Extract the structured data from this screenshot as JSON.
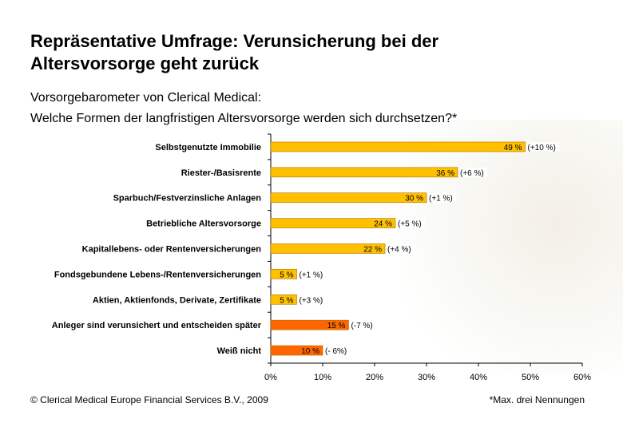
{
  "header": {
    "title_line1": "Repräsentative Umfrage: Verunsicherung bei der",
    "title_line2": "Altersvorsorge geht zurück",
    "subtitle_line1": "Vorsorgebarometer von Clerical Medical:",
    "subtitle_line2": "Welche Formen der langfristigen Altersvorsorge werden sich durchsetzen?*"
  },
  "footer": {
    "copyright": "© Clerical Medical Europe Financial Services B.V., 2009",
    "note": "*Max. drei Nennungen"
  },
  "chart_data": {
    "type": "bar",
    "orientation": "horizontal",
    "title": "",
    "xlabel": "",
    "ylabel": "",
    "xlim": [
      0,
      60
    ],
    "ticks": [
      "0%",
      "10%",
      "20%",
      "30%",
      "40%",
      "50%",
      "60%"
    ],
    "grid": false,
    "categories": [
      "Selbstgenutzte Immobilie",
      "Riester-/Basisrente",
      "Sparbuch/Festverzinsliche Anlagen",
      "Betriebliche Altersvorsorge",
      "Kapitallebens- oder Rentenversicherungen",
      "Fondsgebundene Lebens-/Rentenversicherungen",
      "Aktien, Aktienfonds, Derivate, Zertifikate",
      "Anleger sind verunsichert und entscheiden später",
      "Weiß nicht"
    ],
    "values": [
      49,
      36,
      30,
      24,
      22,
      5,
      5,
      15,
      10
    ],
    "value_labels": [
      "49 %",
      "36 %",
      "30 %",
      "24 %",
      "22 %",
      "5 %",
      "5 %",
      "15 %",
      "10 %"
    ],
    "change_labels": [
      "(+10 %)",
      "(+6 %)",
      "(+1 %)",
      "(+5 %)",
      "(+4 %)",
      "(+1 %)",
      "(+3 %)",
      "(-7 %)",
      "(- 6%)"
    ],
    "bar_colors": [
      "#ffc000",
      "#ffc000",
      "#ffc000",
      "#ffc000",
      "#ffc000",
      "#ffc000",
      "#ffc000",
      "#ff6600",
      "#ff6600"
    ]
  }
}
